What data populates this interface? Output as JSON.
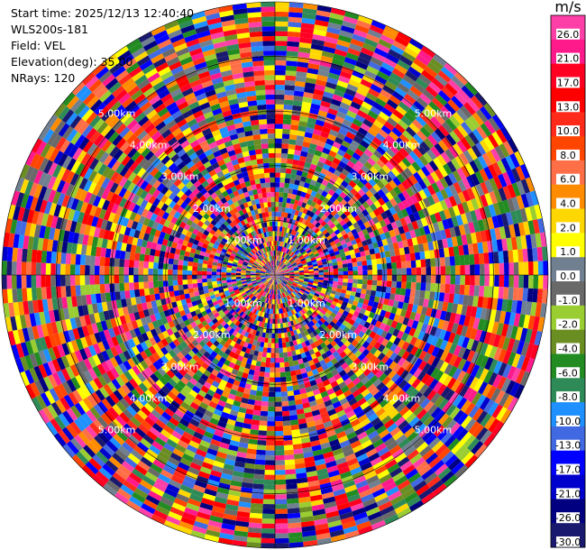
{
  "info": {
    "start_time": "Start time: 2025/12/13 12:40:40",
    "instrument": "WLS200s-181",
    "field": "Field: VEL",
    "elevation": "Elevation(deg): 35.00",
    "nrays": "NRays: 120"
  },
  "chart_data": {
    "type": "heatmap",
    "projection": "polar-ppi",
    "field": "VEL",
    "nrays": 120,
    "elevation_deg": 35.0,
    "range_rings": [
      {
        "label": "1.00km",
        "value": 1.0
      },
      {
        "label": "2.00km",
        "value": 2.0
      },
      {
        "label": "3.00km",
        "value": 3.0
      },
      {
        "label": "4.00km",
        "value": 4.0
      },
      {
        "label": "5.00km",
        "value": 5.0
      }
    ],
    "range_max_km": 5.0,
    "colorbar": {
      "unit": "m/s",
      "ticks": [
        "26.0",
        "21.0",
        "17.0",
        "13.0",
        "10.0",
        "8.0",
        "6.0",
        "4.0",
        "2.0",
        "1.0",
        "0.0",
        "-1.0",
        "-2.0",
        "-4.0",
        "-6.0",
        "-8.0",
        "-10.0",
        "-13.0",
        "-17.0",
        "-21.0",
        "-26.0",
        "-30.0"
      ],
      "colors": [
        "#ff3fa8",
        "#ff1a8c",
        "#ff0022",
        "#ff0000",
        "#ff2a1a",
        "#ff4500",
        "#ff6f47",
        "#ff8c00",
        "#ffd700",
        "#ffff00",
        "#708090",
        "#696969",
        "#9acd32",
        "#6b8e23",
        "#228b22",
        "#2e8b57",
        "#1e90ff",
        "#4169e1",
        "#0000ff",
        "#0000cd",
        "#000080",
        "#191970"
      ]
    }
  }
}
